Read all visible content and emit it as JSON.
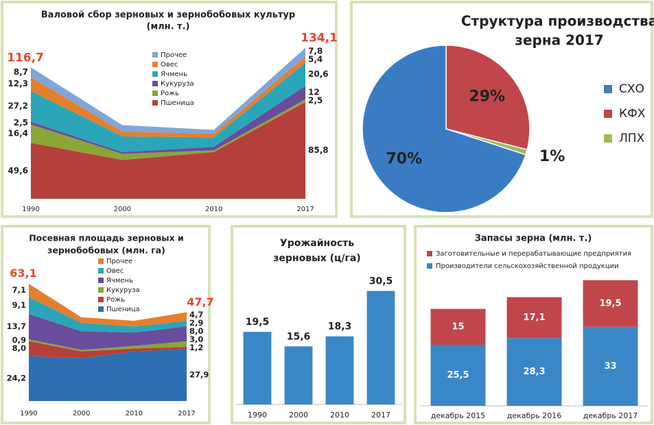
{
  "chart_data": [
    {
      "type": "stacked_area",
      "title": [
        "Валовой сбор зерновых и зернобобовых культур",
        "(млн. т.)"
      ],
      "categories": [
        "1990",
        "2000",
        "2010",
        "2017"
      ],
      "ylim": [
        0,
        140
      ],
      "series": [
        {
          "name": "Пшеница",
          "color": "#b5403b",
          "values": [
            49.6,
            34.5,
            41.5,
            85.8
          ],
          "value_labels": [
            "49,6",
            null,
            null,
            "85,8"
          ]
        },
        {
          "name": "Рожь",
          "color": "#8aa53a",
          "values": [
            16.4,
            5.4,
            1.6,
            2.5
          ],
          "value_labels": [
            "16,4",
            null,
            null,
            "2,5"
          ]
        },
        {
          "name": "Кукуруза",
          "color": "#6a4c9c",
          "values": [
            2.5,
            1.5,
            3.1,
            12
          ],
          "value_labels": [
            "2,5",
            null,
            null,
            "12"
          ]
        },
        {
          "name": "Ячмень",
          "color": "#2aa6b8",
          "values": [
            27.2,
            14,
            8.4,
            20.6
          ],
          "value_labels": [
            "27,2",
            null,
            null,
            "20,6"
          ]
        },
        {
          "name": "Овес",
          "color": "#e57f2e",
          "values": [
            12.3,
            4.4,
            3.2,
            5.4
          ],
          "value_labels": [
            "12,3",
            null,
            null,
            "5,4"
          ]
        },
        {
          "name": "Прочее",
          "color": "#7ea6d8",
          "values": [
            8.7,
            5.6,
            3.4,
            7.8
          ],
          "value_labels": [
            "8,7",
            null,
            null,
            "7,8"
          ]
        }
      ],
      "totals": [
        116.7,
        null,
        null,
        134.1
      ],
      "total_labels": [
        "116,7",
        null,
        null,
        "134,1"
      ]
    },
    {
      "type": "pie",
      "title": [
        "Структура производства",
        "зерна 2017"
      ],
      "categories": [
        "СХО",
        "КФХ",
        "ЛПХ"
      ],
      "values": [
        70,
        29,
        1
      ],
      "value_labels": [
        "70%",
        "29%",
        "1%"
      ],
      "colors": [
        "#3a7cc4",
        "#c0464a",
        "#9bbb59"
      ]
    },
    {
      "type": "stacked_area",
      "title": [
        "Посевная площадь зерновых и",
        "зернобобовых (млн. га)"
      ],
      "categories": [
        "1990",
        "2000",
        "2010",
        "2017"
      ],
      "ylim": [
        0,
        70
      ],
      "series": [
        {
          "name": "Пшеница",
          "color": "#2d6fb0",
          "values": [
            24.2,
            23,
            26.6,
            27.9
          ],
          "value_labels": [
            "24,2",
            null,
            null,
            "27,9"
          ]
        },
        {
          "name": "Рожь",
          "color": "#b5403b",
          "values": [
            8.0,
            3.7,
            1.6,
            1.2
          ],
          "value_labels": [
            "8,0",
            null,
            null,
            "1,2"
          ]
        },
        {
          "name": "Кукуруза",
          "color": "#8aa53a",
          "values": [
            0.9,
            0.8,
            1.4,
            3.0
          ],
          "value_labels": [
            "0,9",
            null,
            null,
            "3,0"
          ]
        },
        {
          "name": "Ячмень",
          "color": "#6a4c9c",
          "values": [
            13.7,
            10,
            7.2,
            8.0
          ],
          "value_labels": [
            "13,7",
            null,
            null,
            "8,0"
          ]
        },
        {
          "name": "Овес",
          "color": "#2aa6b8",
          "values": [
            9.1,
            4.5,
            3.3,
            2.9
          ],
          "value_labels": [
            "9,1",
            null,
            null,
            "2,9"
          ]
        },
        {
          "name": "Прочее",
          "color": "#e57f2e",
          "values": [
            7.1,
            3,
            3,
            4.7
          ],
          "value_labels": [
            "7,1",
            null,
            null,
            "4,7"
          ]
        }
      ],
      "totals": [
        63.1,
        null,
        null,
        47.7
      ],
      "total_labels": [
        "63,1",
        null,
        null,
        "47,7"
      ]
    },
    {
      "type": "bar",
      "title": [
        "Урожайность",
        "зерновых (ц/га)"
      ],
      "categories": [
        "1990",
        "2000",
        "2010",
        "2017"
      ],
      "values": [
        19.5,
        15.6,
        18.3,
        30.5
      ],
      "value_labels": [
        "19,5",
        "15,6",
        "18,3",
        "30,5"
      ],
      "color": "#3a87c8",
      "ylim": [
        0,
        35
      ]
    },
    {
      "type": "stacked_bar",
      "title": [
        "Запасы зерна (млн. т.)"
      ],
      "categories": [
        "декабрь 2015",
        "декабрь 2016",
        "декабрь 2017"
      ],
      "ylim": [
        0,
        55
      ],
      "series": [
        {
          "name": "Производители сельскохозяйственной продукции",
          "color": "#3a87c8",
          "values": [
            25.5,
            28.3,
            33
          ],
          "value_labels": [
            "25,5",
            "28,3",
            "33"
          ]
        },
        {
          "name": "Заготовительные и перерабатывающие предприятия",
          "color": "#c0464a",
          "values": [
            15,
            17.1,
            19.5
          ],
          "value_labels": [
            "15",
            "17,1",
            "19,5"
          ]
        }
      ]
    }
  ]
}
